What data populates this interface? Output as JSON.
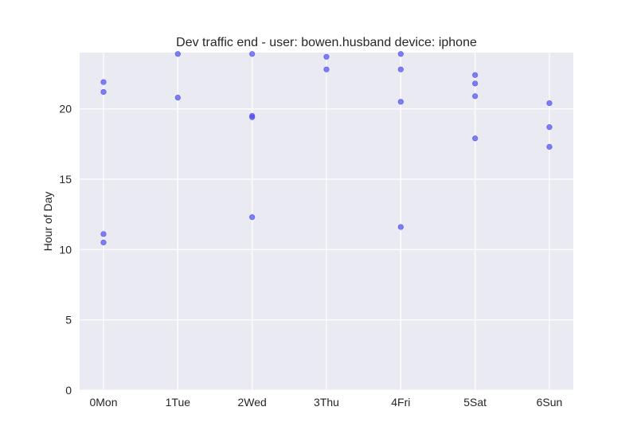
{
  "chart_data": {
    "type": "scatter",
    "title": "Dev traffic end - user: bowen.husband device: iphone",
    "xlabel": "",
    "ylabel": "Hour of Day",
    "categories": [
      "0Mon",
      "1Tue",
      "2Wed",
      "3Thu",
      "4Fri",
      "5Sat",
      "6Sun"
    ],
    "ylim": [
      0,
      24
    ],
    "yticks": [
      0,
      5,
      10,
      15,
      20
    ],
    "grid": true,
    "colors": {
      "point": "#4b4bf0",
      "background": "#eaeaf2",
      "grid": "#ffffff"
    },
    "series": [
      {
        "points": [
          {
            "x": "0Mon",
            "y": 21.9
          },
          {
            "x": "0Mon",
            "y": 21.2
          },
          {
            "x": "0Mon",
            "y": 11.1
          },
          {
            "x": "0Mon",
            "y": 10.5
          },
          {
            "x": "1Tue",
            "y": 23.9
          },
          {
            "x": "1Tue",
            "y": 20.8
          },
          {
            "x": "2Wed",
            "y": 23.9
          },
          {
            "x": "2Wed",
            "y": 19.5
          },
          {
            "x": "2Wed",
            "y": 19.4
          },
          {
            "x": "2Wed",
            "y": 12.3
          },
          {
            "x": "3Thu",
            "y": 23.7
          },
          {
            "x": "3Thu",
            "y": 22.8
          },
          {
            "x": "4Fri",
            "y": 23.9
          },
          {
            "x": "4Fri",
            "y": 22.8
          },
          {
            "x": "4Fri",
            "y": 20.5
          },
          {
            "x": "4Fri",
            "y": 11.6
          },
          {
            "x": "5Sat",
            "y": 22.4
          },
          {
            "x": "5Sat",
            "y": 21.8
          },
          {
            "x": "5Sat",
            "y": 20.9
          },
          {
            "x": "5Sat",
            "y": 17.9
          },
          {
            "x": "6Sun",
            "y": 20.4
          },
          {
            "x": "6Sun",
            "y": 18.7
          },
          {
            "x": "6Sun",
            "y": 17.3
          }
        ]
      }
    ]
  }
}
